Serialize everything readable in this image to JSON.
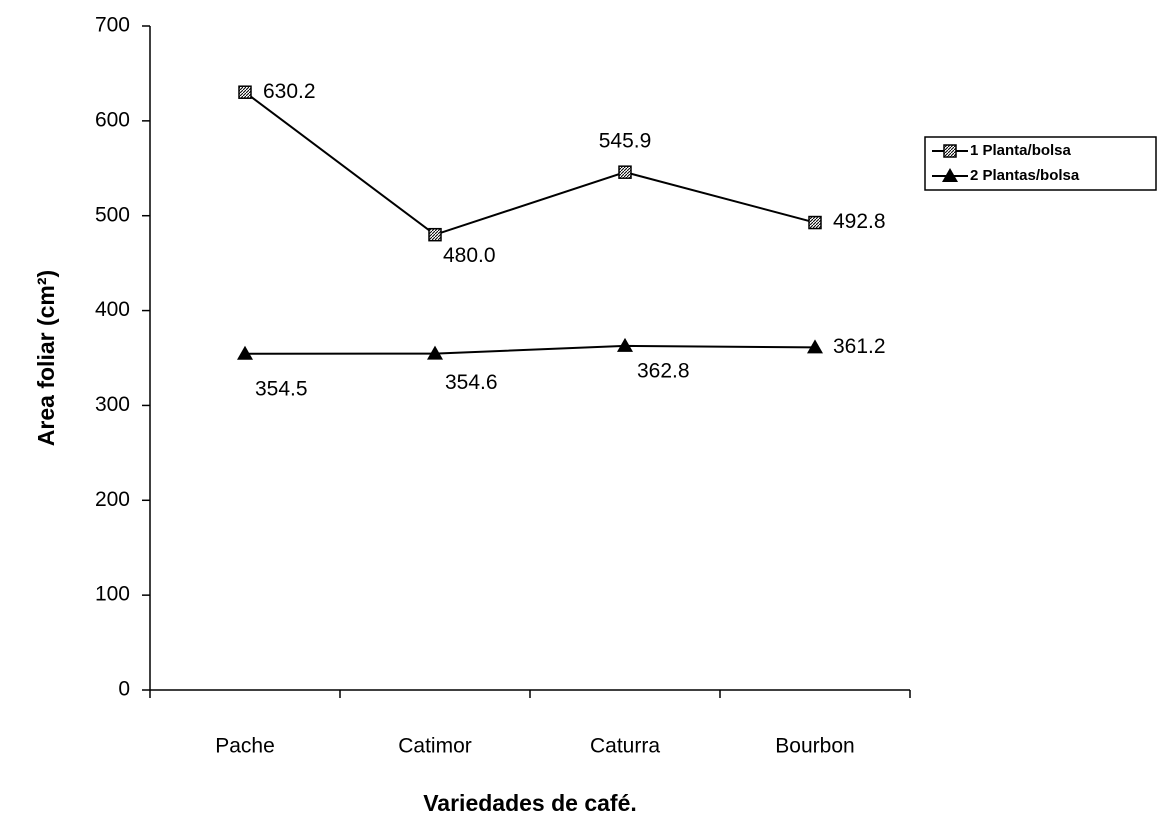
{
  "chart_data": {
    "type": "line",
    "x_label": "Variedades de café.",
    "y_label": "Area foliar (cm²)",
    "categories": [
      "Pache",
      "Catimor",
      "Caturra",
      "Bourbon"
    ],
    "series": [
      {
        "name": "1 Planta/bolsa",
        "color": "#000000",
        "marker": "square",
        "values": [
          630.2,
          480.0,
          545.9,
          492.8
        ],
        "value_labels": [
          "630.2",
          "480.0",
          "545.9",
          "492.8"
        ]
      },
      {
        "name": "2 Plantas/bolsa",
        "color": "#000000",
        "marker": "triangle",
        "values": [
          354.5,
          354.6,
          362.8,
          361.2
        ]
      }
    ],
    "ylim": [
      0,
      700
    ],
    "yticks": [
      0,
      100,
      200,
      300,
      400,
      500,
      600,
      700
    ],
    "legend": "right"
  }
}
